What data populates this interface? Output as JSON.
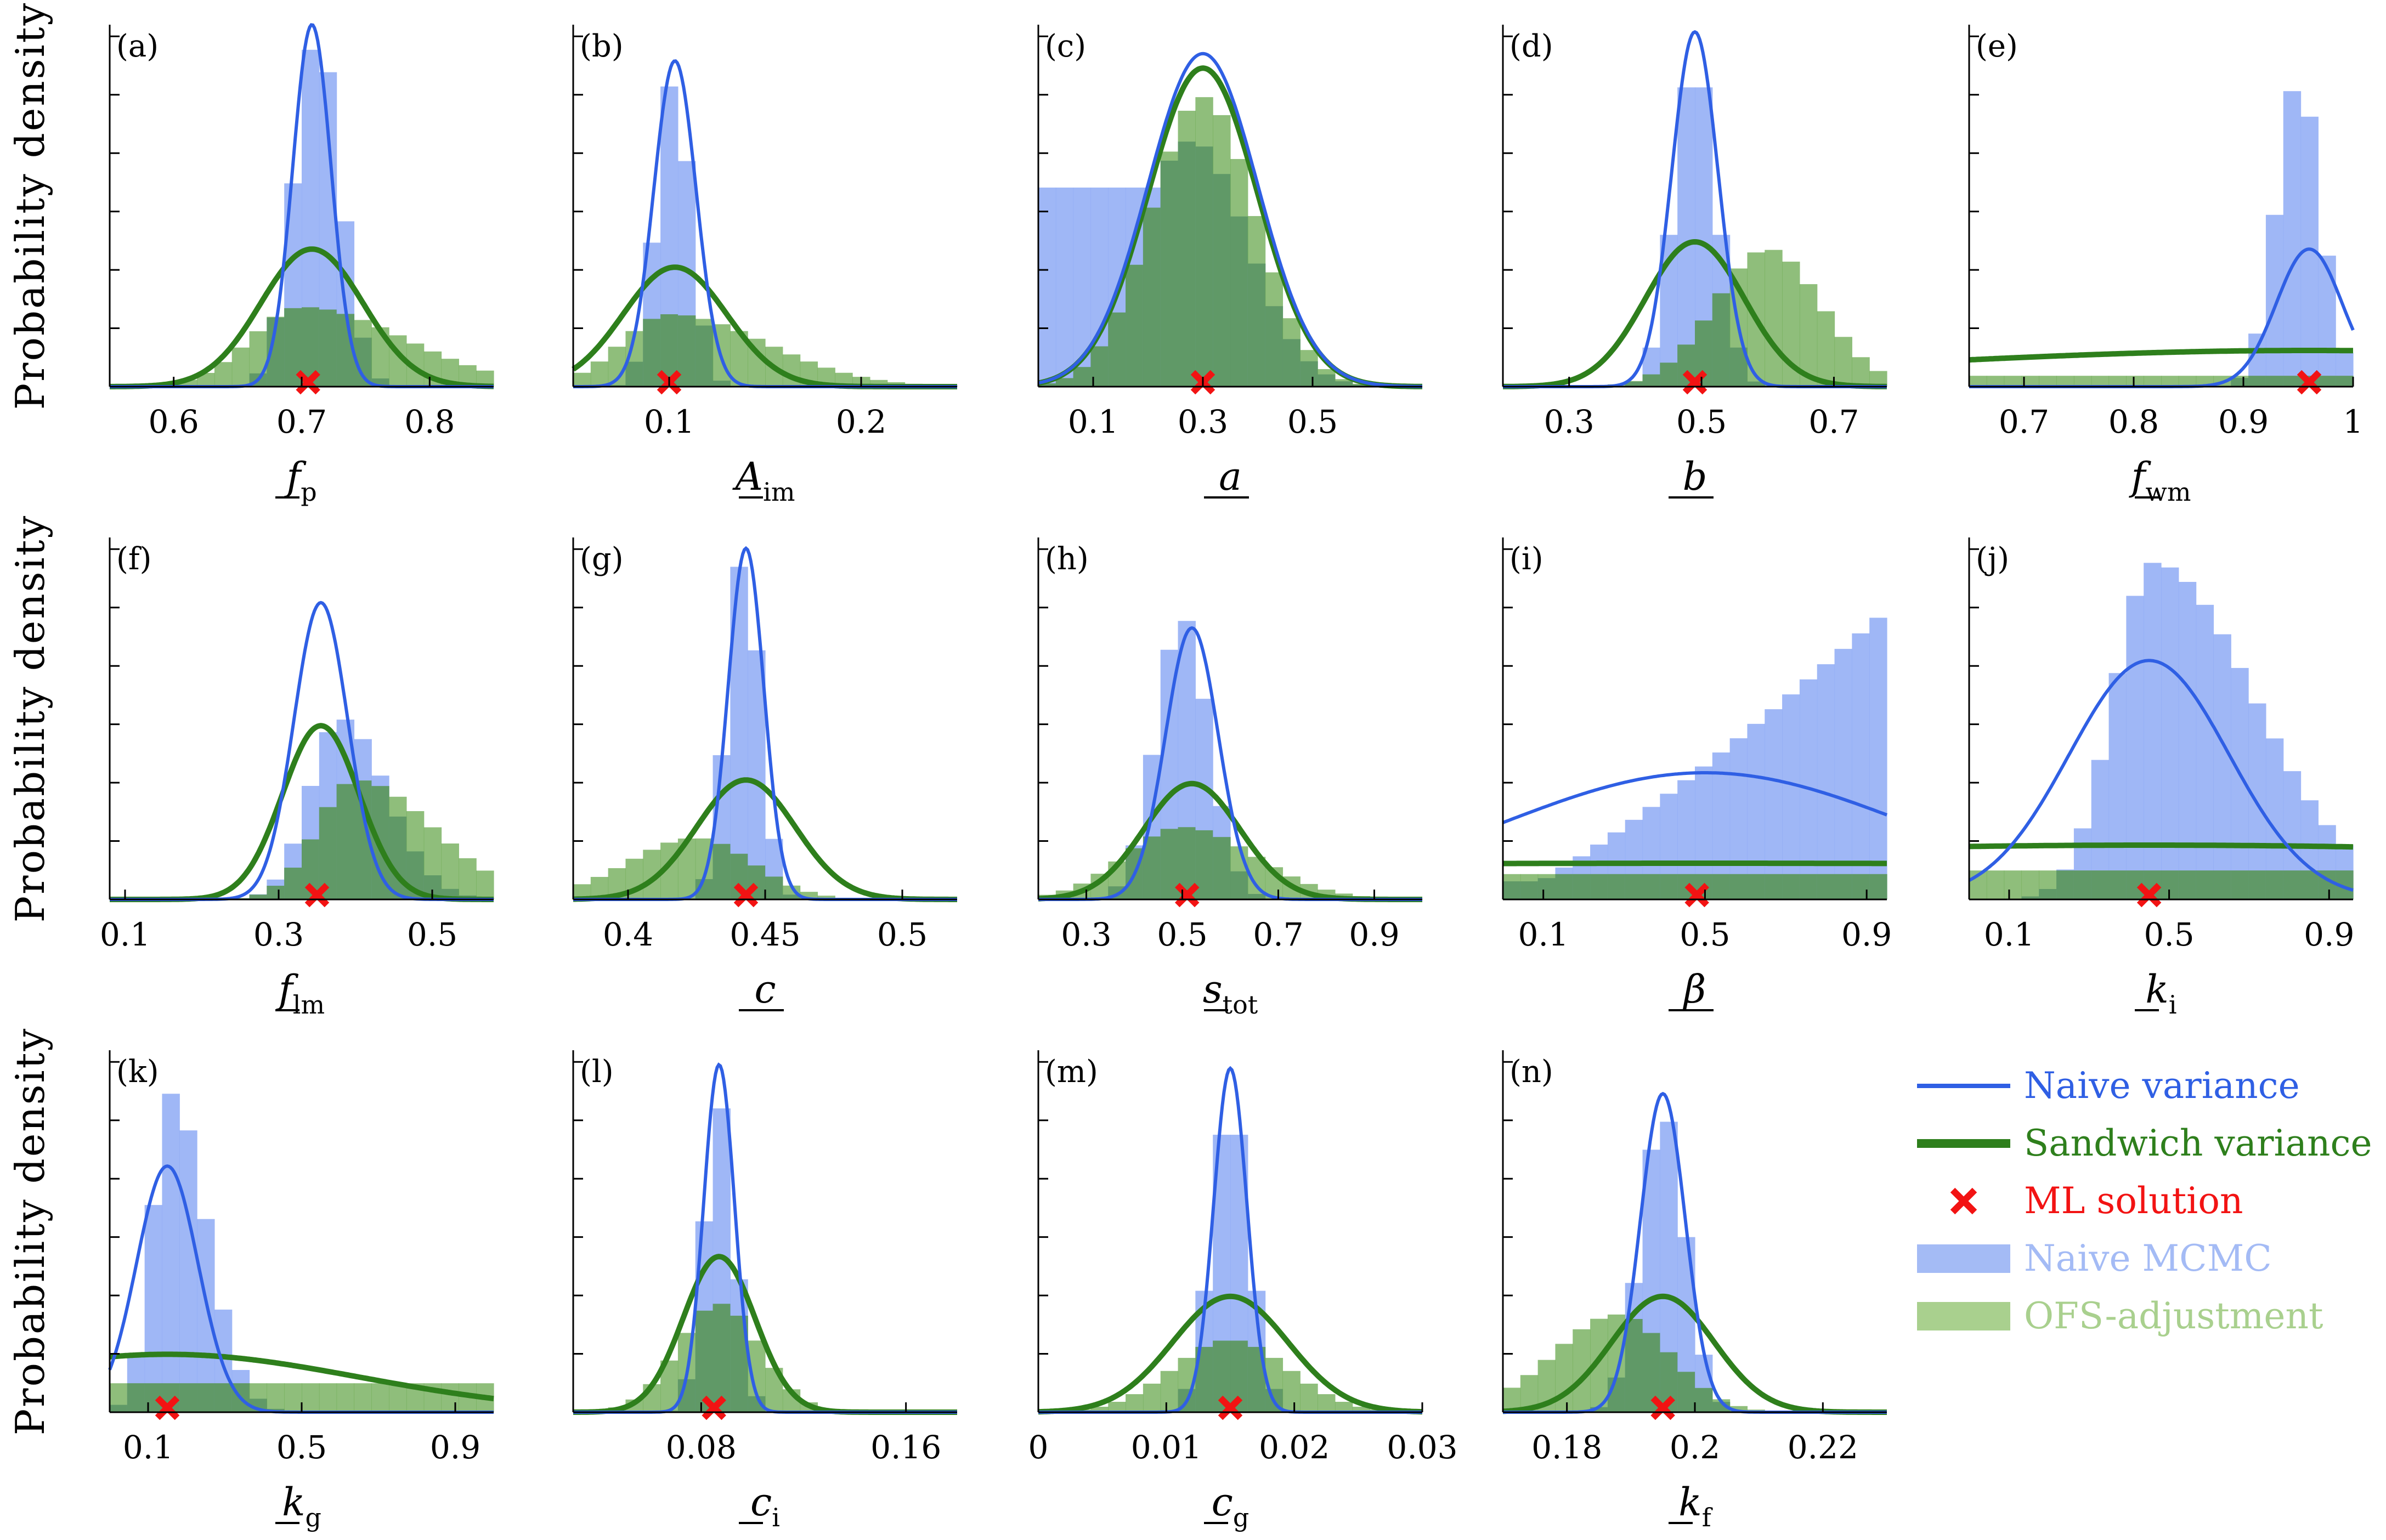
{
  "figure": {
    "ylabel": "Probability density",
    "colors": {
      "naive_line": "#2f5fe4",
      "sandwich_line": "#2e7f1c",
      "ml": "#f21313",
      "naive_hist": "#8eaaf5",
      "ofs_hist": "#6aa84f",
      "overlap_hist": "#4e8a5a"
    },
    "legend": [
      {
        "key": "naive_line",
        "label": "Naive variance",
        "color": "#2f5fe4"
      },
      {
        "key": "sandwich_line",
        "label": "Sandwich variance",
        "color": "#2e7f1c"
      },
      {
        "key": "ml",
        "label": "ML solution",
        "color": "#f21313"
      },
      {
        "key": "naive_hist",
        "label": "Naive MCMC",
        "color": "#a4bbf5"
      },
      {
        "key": "ofs_hist",
        "label": "OFS-adjustment",
        "color": "#a9d08e"
      }
    ]
  },
  "chart_data": [
    {
      "id": "a",
      "panel": "(a)",
      "type": "histogram",
      "xsym": "f",
      "xsub": "p",
      "xlim": [
        0.55,
        0.85
      ],
      "ticks": [
        0.6,
        0.7,
        0.8
      ],
      "tick_labels": [
        "0.6",
        "0.7",
        "0.8"
      ],
      "ml": 0.705,
      "naive": {
        "mu": 0.708,
        "sd": 0.015,
        "h": 1.0
      },
      "sandwich": {
        "mu": 0.708,
        "sd": 0.04,
        "h": 0.38
      },
      "mcmc_shape": {
        "kind": "normal",
        "mu": 0.712,
        "sd": 0.018,
        "h": 0.97
      },
      "ofs_shape": {
        "kind": "skew",
        "mu": 0.7,
        "sl": 0.04,
        "sr": 0.08,
        "h": 0.22
      }
    },
    {
      "id": "b",
      "panel": "(b)",
      "type": "histogram",
      "xsym": "A",
      "xsub": "im",
      "xlim": [
        0.05,
        0.25
      ],
      "ticks": [
        0.1,
        0.2
      ],
      "tick_labels": [
        "0.1",
        "0.2"
      ],
      "ml": 0.1,
      "naive": {
        "mu": 0.103,
        "sd": 0.011,
        "h": 0.9
      },
      "sandwich": {
        "mu": 0.103,
        "sd": 0.027,
        "h": 0.33
      },
      "mcmc_shape": {
        "kind": "normal",
        "mu": 0.102,
        "sd": 0.009,
        "h": 0.85
      },
      "ofs_shape": {
        "kind": "skew",
        "mu": 0.1,
        "sl": 0.025,
        "sr": 0.05,
        "h": 0.2
      }
    },
    {
      "id": "c",
      "panel": "(c)",
      "type": "histogram",
      "xsym": "a",
      "xsub": "",
      "xlim": [
        0.0,
        0.7
      ],
      "ticks": [
        0.1,
        0.3,
        0.5
      ],
      "tick_labels": [
        "0.1",
        "0.3",
        "0.5"
      ],
      "ml": 0.3,
      "naive": {
        "mu": 0.3,
        "sd": 0.1,
        "h": 0.92
      },
      "sandwich": {
        "mu": 0.3,
        "sd": 0.1,
        "h": 0.88
      },
      "mcmc_shape": {
        "kind": "plateau",
        "mu": 0.28,
        "sd": 0.1,
        "h": 0.68,
        "floor": 0.55,
        "cut": 0.28
      },
      "ofs_shape": {
        "kind": "normal",
        "mu": 0.3,
        "sd": 0.095,
        "h": 0.8
      }
    },
    {
      "id": "d",
      "panel": "(d)",
      "type": "histogram",
      "xsym": "b",
      "xsub": "",
      "xlim": [
        0.2,
        0.78
      ],
      "ticks": [
        0.3,
        0.5,
        0.7
      ],
      "tick_labels": [
        "0.3",
        "0.5",
        "0.7"
      ],
      "ml": 0.49,
      "naive": {
        "mu": 0.49,
        "sd": 0.035,
        "h": 0.98
      },
      "sandwich": {
        "mu": 0.49,
        "sd": 0.075,
        "h": 0.4
      },
      "mcmc_shape": {
        "kind": "normal",
        "mu": 0.49,
        "sd": 0.032,
        "h": 0.9
      },
      "ofs_shape": {
        "kind": "skew",
        "mu": 0.6,
        "sl": 0.08,
        "sr": 0.08,
        "h": 0.38
      }
    },
    {
      "id": "e",
      "panel": "(e)",
      "type": "histogram",
      "xsym": "f",
      "xsub": "wm",
      "xlim": [
        0.65,
        1.0
      ],
      "ticks": [
        0.7,
        0.8,
        0.9,
        1.0
      ],
      "tick_labels": [
        "0.7",
        "0.8",
        "0.9",
        "1"
      ],
      "ml": 0.96,
      "naive": {
        "mu": 0.96,
        "sd": 0.03,
        "h": 0.38
      },
      "sandwich": {
        "mu": 0.96,
        "sd": 0.4,
        "h": 0.1
      },
      "mcmc_shape": {
        "kind": "normal",
        "mu": 0.95,
        "sd": 0.02,
        "h": 0.85
      },
      "ofs_shape": {
        "kind": "uniform",
        "h": 0.03
      }
    },
    {
      "id": "f",
      "panel": "(f)",
      "type": "histogram",
      "xsym": "f",
      "xsub": "lm",
      "xlim": [
        0.08,
        0.58
      ],
      "ticks": [
        0.1,
        0.3,
        0.5
      ],
      "tick_labels": [
        "0.1",
        "0.3",
        "0.5"
      ],
      "ml": 0.35,
      "naive": {
        "mu": 0.355,
        "sd": 0.035,
        "h": 0.82
      },
      "sandwich": {
        "mu": 0.355,
        "sd": 0.05,
        "h": 0.48
      },
      "mcmc_shape": {
        "kind": "skew",
        "mu": 0.38,
        "sl": 0.04,
        "sr": 0.06,
        "h": 0.5
      },
      "ofs_shape": {
        "kind": "skew",
        "mu": 0.4,
        "sl": 0.05,
        "sr": 0.1,
        "h": 0.33
      }
    },
    {
      "id": "g",
      "panel": "(g)",
      "type": "histogram",
      "xsym": "c",
      "xsub": "",
      "xlim": [
        0.38,
        0.52
      ],
      "ticks": [
        0.4,
        0.45,
        0.5
      ],
      "tick_labels": [
        "0.4",
        "0.45",
        "0.5"
      ],
      "ml": 0.443,
      "naive": {
        "mu": 0.443,
        "sd": 0.0065,
        "h": 0.97
      },
      "sandwich": {
        "mu": 0.443,
        "sd": 0.018,
        "h": 0.33
      },
      "mcmc_shape": {
        "kind": "normal",
        "mu": 0.442,
        "sd": 0.006,
        "h": 0.95
      },
      "ofs_shape": {
        "kind": "skew",
        "mu": 0.425,
        "sl": 0.025,
        "sr": 0.02,
        "h": 0.17
      }
    },
    {
      "id": "h",
      "panel": "(h)",
      "type": "histogram",
      "xsym": "s",
      "xsub": "tot",
      "xlim": [
        0.2,
        1.0
      ],
      "ticks": [
        0.3,
        0.5,
        0.7,
        0.9
      ],
      "tick_labels": [
        "0.3",
        "0.5",
        "0.7",
        "0.9"
      ],
      "ml": 0.51,
      "naive": {
        "mu": 0.52,
        "sd": 0.055,
        "h": 0.75
      },
      "sandwich": {
        "mu": 0.52,
        "sd": 0.1,
        "h": 0.32
      },
      "mcmc_shape": {
        "kind": "normal",
        "mu": 0.5,
        "sd": 0.055,
        "h": 0.78
      },
      "ofs_shape": {
        "kind": "skew",
        "mu": 0.5,
        "sl": 0.12,
        "sr": 0.15,
        "h": 0.2
      }
    },
    {
      "id": "i",
      "panel": "(i)",
      "type": "histogram",
      "xsym": "β",
      "xsub": "",
      "xlim": [
        0.0,
        0.95
      ],
      "ticks": [
        0.1,
        0.5,
        0.9
      ],
      "tick_labels": [
        "0.1",
        "0.5",
        "0.9"
      ],
      "ml": 0.48,
      "naive": {
        "mu": 0.5,
        "sd": 0.5,
        "h": 0.35
      },
      "sandwich": {
        "mu": 0.5,
        "sd": 4.0,
        "h": 0.1
      },
      "mcmc_shape": {
        "kind": "ramp",
        "start": 0.05,
        "h": 0.8
      },
      "ofs_shape": {
        "kind": "uniform",
        "h": 0.07
      }
    },
    {
      "id": "j",
      "panel": "(j)",
      "type": "histogram",
      "xsym": "k",
      "xsub": "i",
      "xlim": [
        0.0,
        0.96
      ],
      "ticks": [
        0.1,
        0.5,
        0.9
      ],
      "tick_labels": [
        "0.1",
        "0.5",
        "0.9"
      ],
      "ml": 0.45,
      "naive": {
        "mu": 0.45,
        "sd": 0.2,
        "h": 0.66
      },
      "sandwich": {
        "mu": 0.45,
        "sd": 2.0,
        "h": 0.15
      },
      "mcmc_shape": {
        "kind": "skew",
        "mu": 0.46,
        "sl": 0.1,
        "sr": 0.25,
        "h": 0.93
      },
      "ofs_shape": {
        "kind": "uniform",
        "h": 0.08
      }
    },
    {
      "id": "k",
      "panel": "(k)",
      "type": "histogram",
      "xsym": "k",
      "xsub": "g",
      "xlim": [
        0.0,
        1.0
      ],
      "ticks": [
        0.1,
        0.5,
        0.9
      ],
      "tick_labels": [
        "0.1",
        "0.5",
        "0.9"
      ],
      "ml": 0.15,
      "naive": {
        "mu": 0.15,
        "sd": 0.08,
        "h": 0.68
      },
      "sandwich": {
        "mu": 0.15,
        "sd": 0.5,
        "h": 0.16
      },
      "mcmc_shape": {
        "kind": "skew",
        "mu": 0.16,
        "sl": 0.05,
        "sr": 0.09,
        "h": 0.88
      },
      "ofs_shape": {
        "kind": "uniform",
        "h": 0.08
      }
    },
    {
      "id": "l",
      "panel": "(l)",
      "type": "histogram",
      "xsym": "c",
      "xsub": "i",
      "xlim": [
        0.03,
        0.18
      ],
      "ticks": [
        0.08,
        0.16
      ],
      "tick_labels": [
        "0.08",
        "0.16"
      ],
      "ml": 0.085,
      "naive": {
        "mu": 0.087,
        "sd": 0.006,
        "h": 0.96
      },
      "sandwich": {
        "mu": 0.087,
        "sd": 0.014,
        "h": 0.43
      },
      "mcmc_shape": {
        "kind": "normal",
        "mu": 0.087,
        "sd": 0.006,
        "h": 0.85
      },
      "ofs_shape": {
        "kind": "normal",
        "mu": 0.087,
        "sd": 0.016,
        "h": 0.3
      }
    },
    {
      "id": "m",
      "panel": "(m)",
      "type": "histogram",
      "xsym": "c",
      "xsub": "g",
      "xlim": [
        0.0,
        0.03
      ],
      "ticks": [
        0.0,
        0.01,
        0.02,
        0.03
      ],
      "tick_labels": [
        "0",
        "0.01",
        "0.02",
        "0.03"
      ],
      "ml": 0.015,
      "naive": {
        "mu": 0.015,
        "sd": 0.0013,
        "h": 0.95
      },
      "sandwich": {
        "mu": 0.015,
        "sd": 0.0045,
        "h": 0.32
      },
      "mcmc_shape": {
        "kind": "normal",
        "mu": 0.015,
        "sd": 0.0015,
        "h": 0.85
      },
      "ofs_shape": {
        "kind": "normal",
        "mu": 0.015,
        "sd": 0.0045,
        "h": 0.2
      }
    },
    {
      "id": "n",
      "panel": "(n)",
      "type": "histogram",
      "xsym": "k",
      "xsub": "f",
      "xlim": [
        0.17,
        0.23
      ],
      "ticks": [
        0.18,
        0.2,
        0.22
      ],
      "tick_labels": [
        "0.18",
        "0.2",
        "0.22"
      ],
      "ml": 0.195,
      "naive": {
        "mu": 0.195,
        "sd": 0.0035,
        "h": 0.88
      },
      "sandwich": {
        "mu": 0.195,
        "sd": 0.008,
        "h": 0.32
      },
      "mcmc_shape": {
        "kind": "normal",
        "mu": 0.195,
        "sd": 0.0035,
        "h": 0.83
      },
      "ofs_shape": {
        "kind": "skew",
        "mu": 0.188,
        "sl": 0.01,
        "sr": 0.008,
        "h": 0.27
      }
    }
  ]
}
